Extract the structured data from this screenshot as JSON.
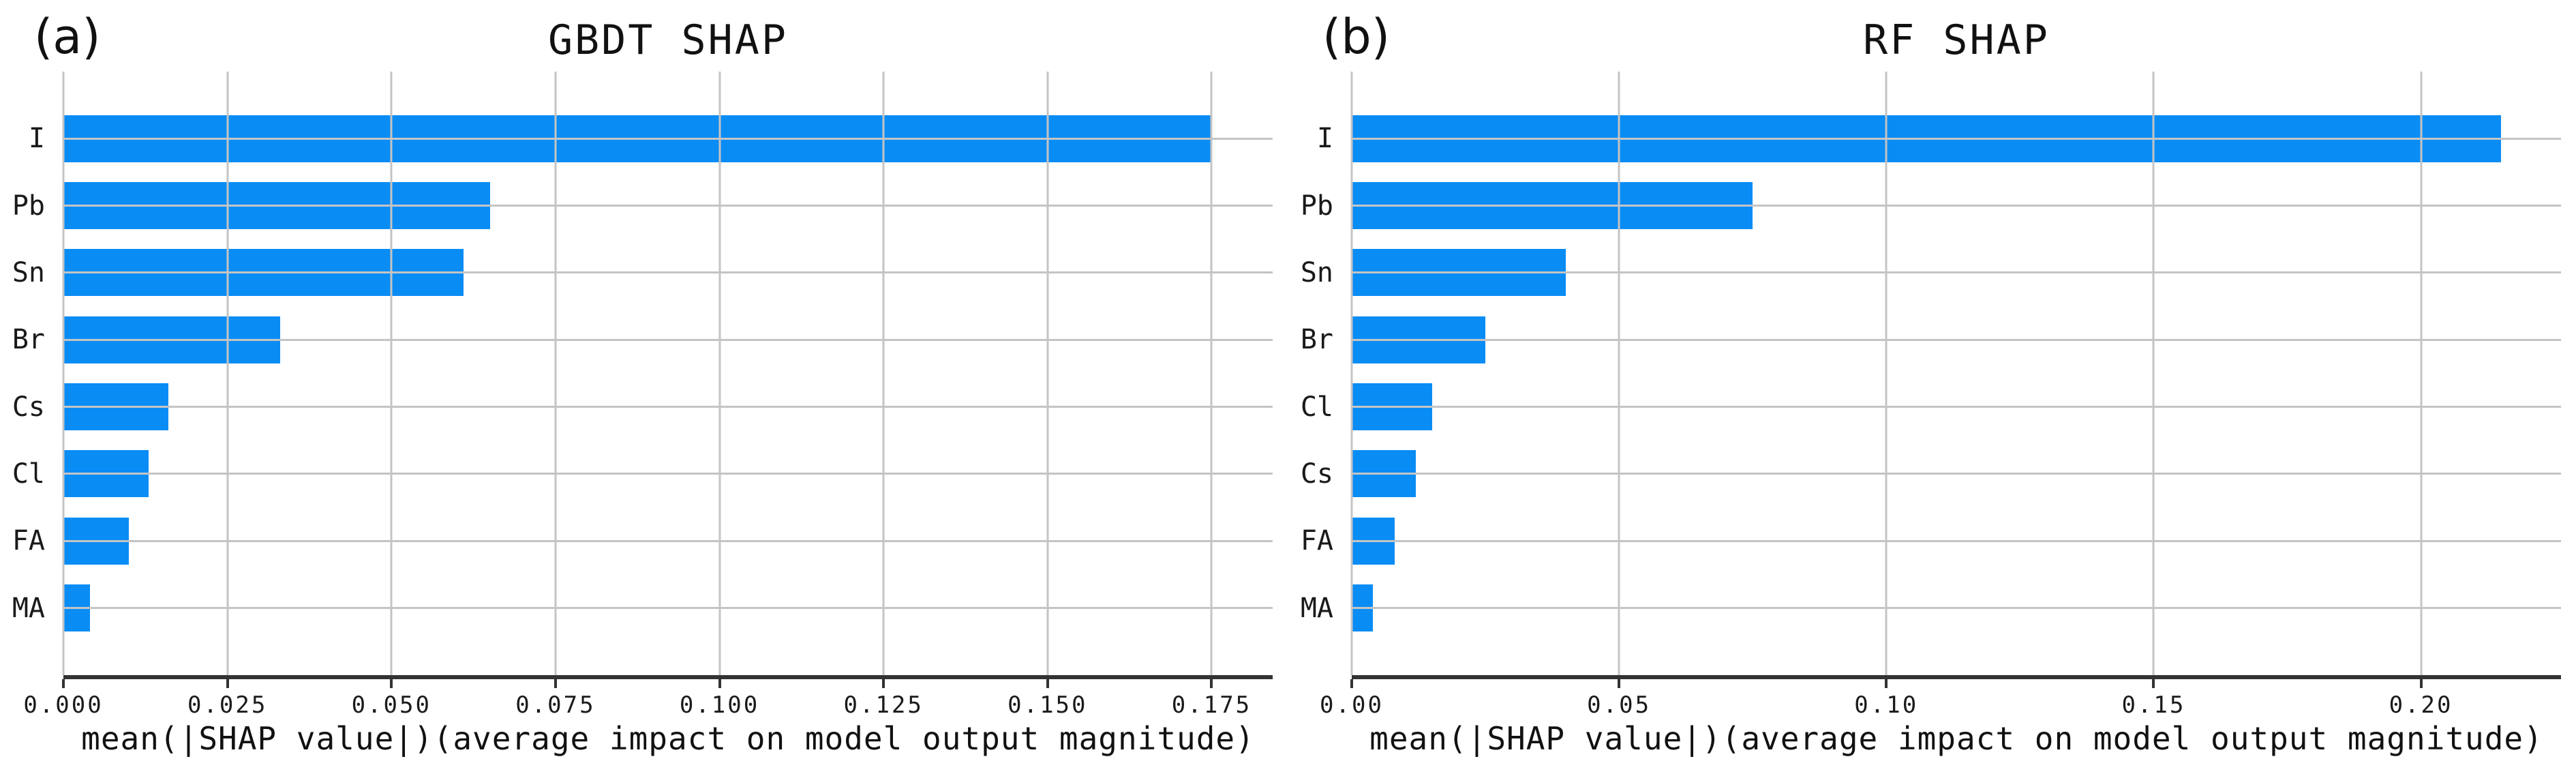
{
  "figure": {
    "background": "#ffffff",
    "xlabel": "mean(|SHAP value|)(average impact on model output magnitude)"
  },
  "colors": {
    "bar": "#0a8cf5",
    "grid": "#c4c4c4",
    "axis": "#333333",
    "text": "#1a1a1a"
  },
  "chart_data": [
    {
      "type": "bar",
      "orientation": "horizontal",
      "panel_label": "(a)",
      "title": "GBDT SHAP",
      "categories": [
        "I",
        "Pb",
        "Sn",
        "Br",
        "Cs",
        "Cl",
        "FA",
        "MA"
      ],
      "values": [
        0.175,
        0.065,
        0.061,
        0.033,
        0.016,
        0.013,
        0.01,
        0.004
      ],
      "xlabel": "mean(|SHAP value|)(average impact on model output magnitude)",
      "ylabel": "",
      "xticks": [
        0.0,
        0.025,
        0.05,
        0.075,
        0.1,
        0.125,
        0.15,
        0.175
      ],
      "xtick_labels": [
        "0.000",
        "0.025",
        "0.050",
        "0.075",
        "0.100",
        "0.125",
        "0.150",
        "0.175"
      ],
      "xlim": [
        0,
        0.1843
      ],
      "grid": "both axes, light gray, drawn above bars",
      "legend": "none"
    },
    {
      "type": "bar",
      "orientation": "horizontal",
      "panel_label": "(b)",
      "title": "RF SHAP",
      "categories": [
        "I",
        "Pb",
        "Sn",
        "Br",
        "Cl",
        "Cs",
        "FA",
        "MA"
      ],
      "values": [
        0.215,
        0.075,
        0.04,
        0.025,
        0.015,
        0.012,
        0.008,
        0.004
      ],
      "xlabel": "mean(|SHAP value|)(average impact on model output magnitude)",
      "ylabel": "",
      "xticks": [
        0.0,
        0.05,
        0.1,
        0.15,
        0.2
      ],
      "xtick_labels": [
        "0.00",
        "0.05",
        "0.10",
        "0.15",
        "0.20"
      ],
      "xlim": [
        0,
        0.2262
      ],
      "grid": "both axes, light gray, drawn above bars",
      "legend": "none"
    }
  ]
}
